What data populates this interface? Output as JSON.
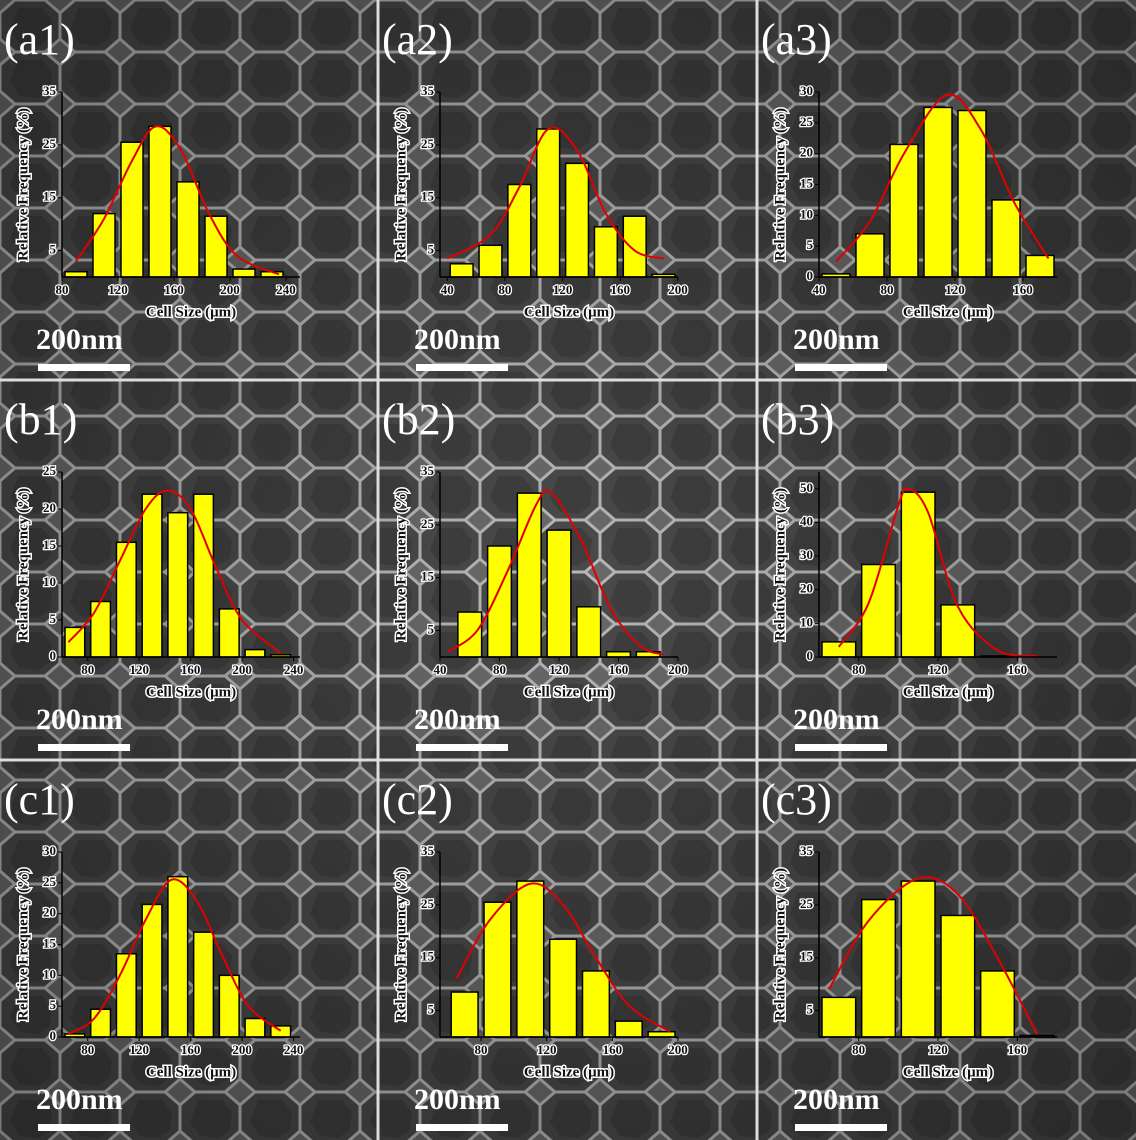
{
  "chart_data": [
    {
      "type": "histogram",
      "panel_label": "(a1)",
      "scale_bar_label": "200nm",
      "xlabel": "Cell Size (μm)",
      "ylabel": "Relative Frequency (%)",
      "color": "#ffff00",
      "bins": [
        80,
        100,
        120,
        140,
        160,
        180,
        200,
        220,
        240
      ],
      "values": [
        1,
        12,
        25.5,
        28.5,
        18,
        11.5,
        1.5,
        1
      ],
      "fit": {
        "color": "#e00000",
        "x": [
          90,
          110,
          130,
          147,
          165,
          185,
          205,
          235
        ],
        "values": [
          3,
          11,
          22,
          28.5,
          24,
          12,
          4,
          0.5
        ]
      },
      "xlim": [
        80,
        250
      ],
      "ylim": [
        0,
        35
      ],
      "xticks": [
        80,
        120,
        160,
        200,
        240
      ],
      "yticks": [
        5,
        15,
        25,
        35
      ]
    },
    {
      "type": "histogram",
      "panel_label": "(a2)",
      "scale_bar_label": "200nm",
      "xlabel": "Cell Size (μm)",
      "ylabel": "Relative Frequency (%)",
      "color": "#ffff00",
      "bins": [
        40,
        60,
        80,
        100,
        120,
        140,
        160,
        180,
        200
      ],
      "values": [
        2.5,
        6,
        17.5,
        28,
        21.5,
        9.5,
        11.5,
        0.5
      ],
      "fit": {
        "color": "#e00000",
        "x": [
          40,
          70,
          90,
          110,
          130,
          150,
          170,
          190
        ],
        "values": [
          3.5,
          8,
          17,
          28,
          24,
          12,
          5,
          3.5
        ]
      },
      "xlim": [
        35,
        200
      ],
      "ylim": [
        0,
        35
      ],
      "xticks": [
        40,
        80,
        120,
        160,
        200
      ],
      "yticks": [
        5,
        15,
        25,
        35
      ]
    },
    {
      "type": "histogram",
      "panel_label": "(a3)",
      "scale_bar_label": "200nm",
      "xlabel": "Cell Size (μm)",
      "ylabel": "Relative Frequency (%)",
      "color": "#ffff00",
      "bins": [
        40,
        60,
        80,
        100,
        120,
        140,
        160,
        180
      ],
      "values": [
        0.5,
        7,
        21.5,
        27.5,
        27,
        12.5,
        3.5
      ],
      "fit": {
        "color": "#e00000",
        "x": [
          50,
          70,
          90,
          115,
          135,
          155,
          175
        ],
        "values": [
          2.5,
          9,
          20,
          29.5,
          24,
          12,
          3
        ]
      },
      "xlim": [
        40,
        180
      ],
      "ylim": [
        0,
        30
      ],
      "xticks": [
        40,
        80,
        120,
        160
      ],
      "yticks": [
        0,
        5,
        10,
        15,
        20,
        25,
        30
      ]
    },
    {
      "type": "histogram",
      "panel_label": "(b1)",
      "scale_bar_label": "200nm",
      "xlabel": "Cell Size (μm)",
      "ylabel": "Relative Frequency (%)",
      "color": "#ffff00",
      "bins": [
        60,
        80,
        100,
        120,
        140,
        160,
        180,
        200,
        220,
        240
      ],
      "values": [
        4,
        7.5,
        15.5,
        22,
        19.5,
        22,
        6.5,
        1,
        0.3
      ],
      "fit": {
        "color": "#e00000",
        "x": [
          65,
          85,
          105,
          125,
          142,
          160,
          180,
          200,
          230
        ],
        "values": [
          2,
          6,
          13,
          20,
          22.5,
          20,
          12,
          5,
          0.5
        ]
      },
      "xlim": [
        60,
        245
      ],
      "ylim": [
        0,
        25
      ],
      "xticks": [
        80,
        120,
        160,
        200,
        240
      ],
      "yticks": [
        0,
        5,
        10,
        15,
        20,
        25
      ]
    },
    {
      "type": "histogram",
      "panel_label": "(b2)",
      "scale_bar_label": "200nm",
      "xlabel": "Cell Size (μm)",
      "ylabel": "Relative Frequency (%)",
      "color": "#ffff00",
      "bins": [
        50,
        70,
        90,
        110,
        130,
        150,
        170,
        190
      ],
      "values": [
        8.5,
        21,
        31,
        24,
        9.5,
        1,
        1
      ],
      "fit": {
        "color": "#e00000",
        "x": [
          45,
          65,
          85,
          105,
          115,
          135,
          155,
          175,
          190
        ],
        "values": [
          1,
          5,
          16,
          29,
          31,
          22,
          9,
          2,
          0.5
        ]
      },
      "xlim": [
        40,
        200
      ],
      "ylim": [
        0,
        35
      ],
      "xticks": [
        40,
        80,
        120,
        160,
        200
      ],
      "yticks": [
        5,
        15,
        25,
        35
      ]
    },
    {
      "type": "histogram",
      "panel_label": "(b3)",
      "scale_bar_label": "200nm",
      "xlabel": "Cell Size (μm)",
      "ylabel": "Relative Frequency (%)",
      "color": "#ffff00",
      "bins": [
        60,
        80,
        100,
        120,
        140,
        160
      ],
      "values": [
        4.5,
        27.5,
        49,
        15.5,
        0.3
      ],
      "fit": {
        "color": "#e00000",
        "x": [
          70,
          85,
          100,
          105,
          115,
          130,
          150,
          170
        ],
        "values": [
          3,
          16,
          45,
          50,
          43,
          15,
          2,
          0.3
        ]
      },
      "xlim": [
        60,
        180
      ],
      "ylim": [
        0,
        55
      ],
      "xticks": [
        80,
        120,
        160
      ],
      "yticks": [
        0,
        10,
        20,
        30,
        40,
        50
      ]
    },
    {
      "type": "histogram",
      "panel_label": "(c1)",
      "scale_bar_label": "200nm",
      "xlabel": "Cell Size (μm)",
      "ylabel": "Relative Frequency (%)",
      "color": "#ffff00",
      "bins": [
        60,
        80,
        100,
        120,
        140,
        160,
        180,
        200,
        220,
        240
      ],
      "values": [
        0.5,
        4.5,
        13.5,
        21.5,
        26,
        17,
        10,
        3,
        1.8
      ],
      "fit": {
        "color": "#e00000",
        "x": [
          65,
          85,
          105,
          125,
          145,
          165,
          185,
          205,
          230
        ],
        "values": [
          0.5,
          3,
          10,
          19,
          25.5,
          22,
          13,
          5,
          1
        ]
      },
      "xlim": [
        60,
        245
      ],
      "ylim": [
        0,
        30
      ],
      "xticks": [
        80,
        120,
        160,
        200,
        240
      ],
      "yticks": [
        0,
        5,
        10,
        15,
        20,
        25,
        30
      ]
    },
    {
      "type": "histogram",
      "panel_label": "(c2)",
      "scale_bar_label": "200nm",
      "xlabel": "Cell Size (μm)",
      "ylabel": "Relative Frequency (%)",
      "color": "#ffff00",
      "bins": [
        60,
        80,
        100,
        120,
        140,
        160,
        180,
        200
      ],
      "values": [
        8.5,
        25.5,
        29.5,
        18.5,
        12.5,
        3,
        1
      ],
      "fit": {
        "color": "#e00000",
        "x": [
          65,
          85,
          110,
          130,
          150,
          170,
          195
        ],
        "values": [
          11,
          22,
          29,
          25,
          15,
          6,
          1
        ]
      },
      "xlim": [
        55,
        200
      ],
      "ylim": [
        0,
        35
      ],
      "xticks": [
        80,
        120,
        160,
        200
      ],
      "yticks": [
        5,
        15,
        25,
        35
      ]
    },
    {
      "type": "histogram",
      "panel_label": "(c3)",
      "scale_bar_label": "200nm",
      "xlabel": "Cell Size (μm)",
      "ylabel": "Relative Frequency (%)",
      "color": "#ffff00",
      "bins": [
        60,
        80,
        100,
        120,
        140,
        160,
        180
      ],
      "values": [
        7.5,
        26,
        29.5,
        23,
        12.5,
        0.3
      ],
      "fit": {
        "color": "#e00000",
        "x": [
          65,
          85,
          110,
          130,
          150,
          170
        ],
        "values": [
          9,
          22,
          30,
          27,
          15,
          0.5
        ]
      },
      "xlim": [
        60,
        180
      ],
      "ylim": [
        0,
        35
      ],
      "xticks": [
        80,
        120,
        160
      ],
      "yticks": [
        5,
        15,
        25,
        35
      ]
    }
  ]
}
